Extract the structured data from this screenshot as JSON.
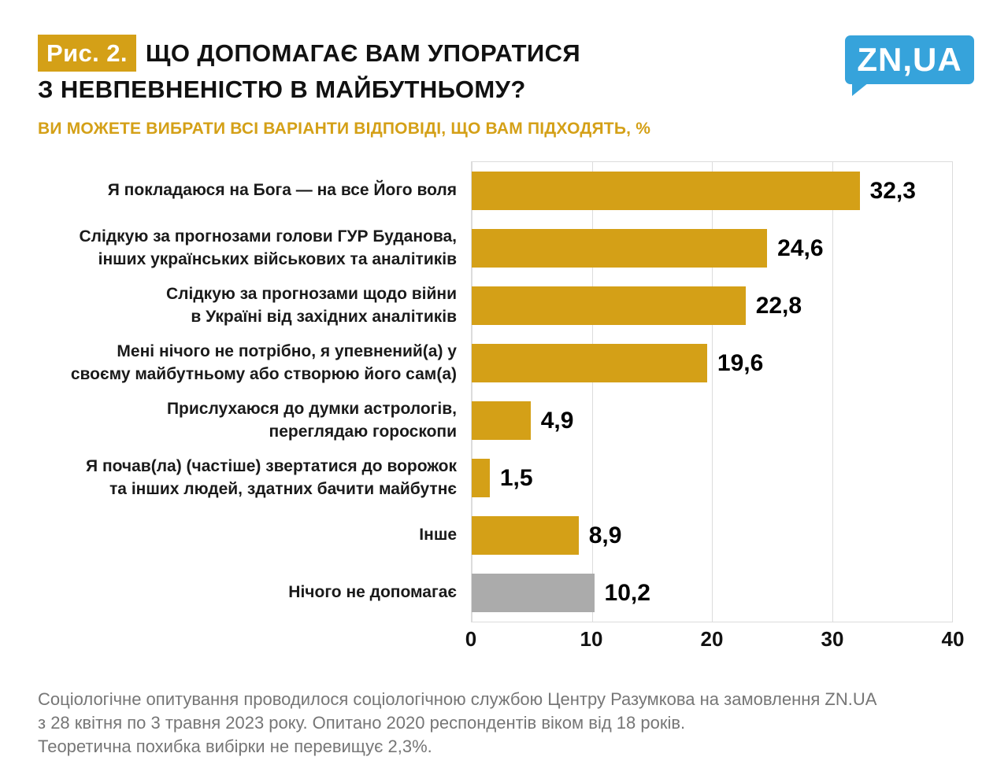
{
  "header": {
    "figure_label": "Рис. 2.",
    "title_line1": "ЩО ДОПОМАГАЄ ВАМ УПОРАТИСЯ",
    "title_line2": "З НЕВПЕВНЕНІСТЮ В МАЙБУТНЬОМУ?",
    "subtitle": "ВИ МОЖЕТЕ ВИБРАТИ ВСІ ВАРІАНТИ ВІДПОВІДІ, ЩО ВАМ ПІДХОДЯТЬ, %",
    "logo_text": "ZN,UA"
  },
  "chart_data": {
    "type": "bar",
    "orientation": "horizontal",
    "title": "ЩО ДОПОМАГАЄ ВАМ УПОРАТИСЯ З НЕВПЕВНЕНІСТЮ В МАЙБУТНЬОМУ?",
    "subtitle": "ВИ МОЖЕТЕ ВИБРАТИ ВСІ ВАРІАНТИ ВІДПОВІДІ, ЩО ВАМ ПІДХОДЯТЬ, %",
    "categories": [
      "Я покладаюся на Бога — на все Його воля",
      "Слідкую за прогнозами голови ГУР Буданова,\nінших українських військових та аналітиків",
      "Слідкую за прогнозами щодо війни\nв Україні від західних аналітиків",
      "Мені нічого не потрібно, я упевнений(а) у\nсвоєму майбутньому або створюю його сам(а)",
      "Прислухаюся до думки астрологів,\nпереглядаю гороскопи",
      "Я почав(ла) (частіше) звертатися до ворожок\nта інших людей, здатних бачити майбутнє",
      "Інше",
      "Нічого не допомагає"
    ],
    "values": [
      32.3,
      24.6,
      22.8,
      19.6,
      4.9,
      1.5,
      8.9,
      10.2
    ],
    "value_labels": [
      "32,3",
      "24,6",
      "22,8",
      "19,6",
      "4,9",
      "1,5",
      "8,9",
      "10,2"
    ],
    "bar_colors": [
      "gold",
      "gold",
      "gold",
      "gold",
      "gold",
      "gold",
      "gold",
      "gray"
    ],
    "xlim": [
      0,
      40
    ],
    "xticks": [
      0,
      10,
      20,
      30,
      40
    ],
    "grid": true,
    "legend": false
  },
  "footer": {
    "lines": [
      "Соціологічне опитування проводилося соціологічною службою Центру Разумкова на замовлення ZN.UA",
      "з 28 квітня по 3 травня 2023 року. Опитано 2020 респондентів віком від 18 років.",
      "Теоретична похибка вибірки не перевищує 2,3%."
    ]
  },
  "colors": {
    "gold": "#D4A017",
    "gray": "#ABABAB",
    "logo_blue": "#36A3DB",
    "title_text": "#111111",
    "footer_text": "#767676",
    "gridline": "#DCDCDC",
    "badge_text": "#FFFFFF"
  }
}
